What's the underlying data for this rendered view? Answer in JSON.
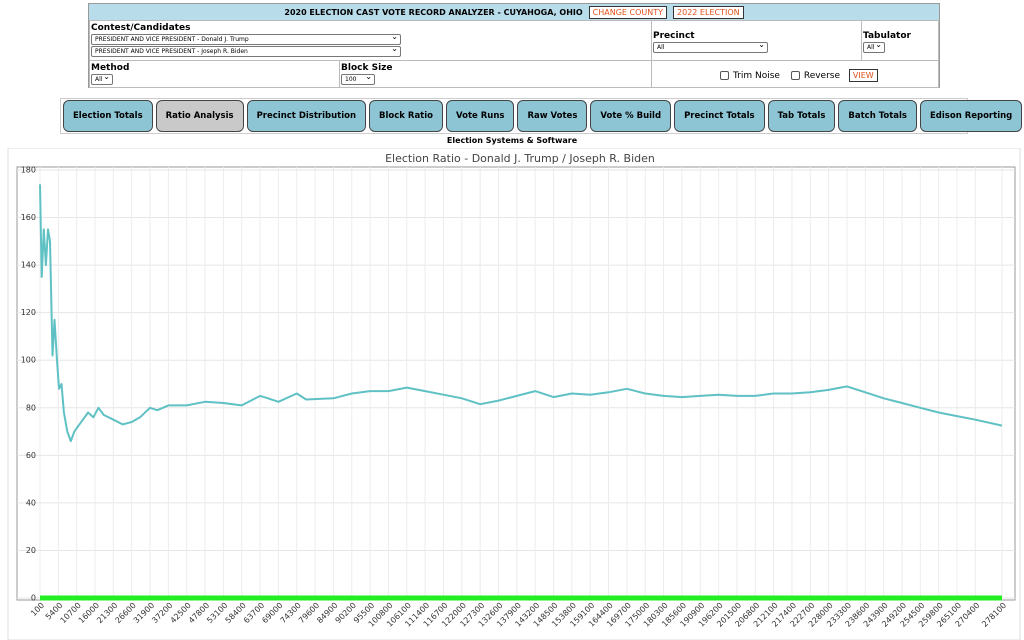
{
  "header": {
    "title": "2020 ELECTION CAST VOTE RECORD ANALYZER - CUYAHOGA, OHIO",
    "buttons": [
      "CHANGE COUNTY",
      "2022 ELECTION"
    ]
  },
  "form": {
    "contest_label": "Contest/Candidates",
    "candidates": [
      "PRESIDENT AND VICE PRESIDENT - Donald J. Trump",
      "PRESIDENT AND VICE PRESIDENT - Joseph R. Biden"
    ],
    "precinct_label": "Precinct",
    "precinct": "All",
    "tabulator_label": "Tabulator",
    "tabulator": "All",
    "method_label": "Method",
    "method": "All",
    "block_size_label": "Block Size",
    "block_size": "100",
    "trim_noise": "Trim Noise",
    "reverse": "Reverse",
    "view": "VIEW"
  },
  "tabs": [
    "Election Totals",
    "Ratio Analysis",
    "Precinct Distribution",
    "Block Ratio",
    "Vote Runs",
    "Raw Votes",
    "Vote % Build",
    "Precinct Totals",
    "Tab Totals",
    "Batch Totals",
    "Edison Reporting"
  ],
  "vendor": "Election Systems & Software",
  "chart_data": {
    "type": "line",
    "title": "Election Ratio - Donald J. Trump / Joseph R. Biden",
    "grid": true,
    "xlim": [
      100,
      278100
    ],
    "ylim": [
      0,
      180
    ],
    "yticks": [
      0,
      20,
      40,
      60,
      80,
      100,
      120,
      140,
      160,
      180
    ],
    "xticks": [
      100,
      5400,
      10700,
      16000,
      21300,
      26600,
      31900,
      37200,
      42500,
      47800,
      53100,
      58400,
      63700,
      69000,
      74300,
      79600,
      84900,
      90200,
      95500,
      100800,
      106100,
      111400,
      116700,
      122000,
      127300,
      132600,
      137900,
      143200,
      148500,
      153800,
      159100,
      164400,
      169700,
      175000,
      180300,
      185600,
      190900,
      196200,
      201500,
      206800,
      212100,
      217400,
      222700,
      228000,
      233300,
      238600,
      243900,
      249200,
      254500,
      259800,
      265100,
      270400,
      278100
    ],
    "series": [
      {
        "color": "#5fc1c4",
        "x": [
          100,
          600,
          1200,
          1800,
          2400,
          3000,
          3700,
          4300,
          5000,
          5600,
          6300,
          7000,
          8000,
          9000,
          10000,
          11000,
          12500,
          14000,
          15500,
          17000,
          18500,
          21300,
          24000,
          26600,
          29000,
          31900,
          34000,
          37200,
          42500,
          47800,
          53100,
          58400,
          63700,
          66000,
          69000,
          74300,
          77000,
          84900,
          90200,
          95500,
          100800,
          106100,
          111400,
          116700,
          122000,
          127300,
          132600,
          137900,
          143200,
          148500,
          153800,
          159100,
          164400,
          169700,
          175000,
          180300,
          185600,
          190900,
          196200,
          201500,
          206800,
          212100,
          217400,
          222700,
          228000,
          233300,
          238600,
          243900,
          249200,
          254500,
          259800,
          265100,
          270400,
          278100
        ],
        "values": [
          174,
          135,
          155,
          140,
          155,
          150,
          102,
          117,
          100,
          88,
          90,
          78,
          70,
          66,
          70,
          72,
          75,
          78,
          76,
          80,
          77,
          75,
          73,
          74,
          76,
          80,
          79,
          81,
          81,
          82.5,
          82,
          81,
          85,
          84,
          82.5,
          86,
          83.5,
          84,
          86,
          87,
          87,
          88.5,
          87,
          85.5,
          84,
          81.5,
          83,
          85,
          87,
          84.5,
          86,
          85.5,
          86.5,
          88,
          86,
          85,
          84.5,
          85,
          85.5,
          85,
          85,
          86,
          86,
          86.5,
          87.5,
          89,
          86.5,
          84,
          82,
          80,
          78,
          76.5,
          75,
          72.5
        ]
      },
      {
        "color": "#22ee22",
        "x": [
          100,
          278100
        ],
        "values": [
          0,
          0
        ]
      }
    ]
  }
}
